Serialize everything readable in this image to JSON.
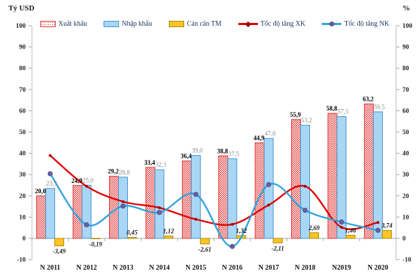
{
  "axis_titles": {
    "left": "Tỷ USD",
    "right": "%"
  },
  "legend": {
    "items": [
      {
        "label": "Xuất khẩu"
      },
      {
        "label": "Nhập khẩu"
      },
      {
        "label": "Cán cân TM"
      },
      {
        "label": "Tốc độ tăng XK"
      },
      {
        "label": "Tốc độ tăng NK"
      }
    ]
  },
  "chart_data": {
    "type": "combo-bar-line",
    "categories": [
      "N 2011",
      "N 2012",
      "N 2013",
      "N 2014",
      "N 2015",
      "N 2016",
      "N 2017",
      "N 2018",
      "N2019",
      "N 2020"
    ],
    "y_axis": {
      "min": -10,
      "max": 100,
      "step": 10,
      "unit_left": "Tỷ USD",
      "unit_right": "%"
    },
    "grid": "off",
    "legend_position": "top",
    "bar_series": [
      {
        "name": "Xuất khẩu",
        "values": [
          20.0,
          24.9,
          29.2,
          33.4,
          36.4,
          38.8,
          44.9,
          55.9,
          58.8,
          63.2
        ],
        "labels": [
          "20,0",
          "24,9",
          "29,2",
          "33,4",
          "36,4",
          "38,8",
          "44,9",
          "55,9",
          "58,8",
          "63,2"
        ],
        "style": "hatched-dots",
        "stroke": "#E03030"
      },
      {
        "name": "Nhập khẩu",
        "values": [
          23.5,
          25.0,
          28.8,
          32.3,
          39.0,
          37.5,
          47.0,
          53.2,
          57.3,
          59.5
        ],
        "labels": [
          "23,5",
          "25,0",
          "28,8",
          "32,3",
          "39,0",
          "37,5",
          "47,0",
          "53,2",
          "57,3",
          "59,5"
        ],
        "fill": "#A9D6F5",
        "stroke": "#4393CE"
      },
      {
        "name": "Cán cân TM",
        "values": [
          -3.49,
          -0.19,
          0.45,
          1.12,
          -2.61,
          1.32,
          -2.11,
          2.69,
          1.46,
          3.74
        ],
        "labels": [
          "-3,49",
          "-0,19",
          "0,45",
          "1,12",
          "-2,61",
          "1,32",
          "-2,11",
          "2,69",
          "1,46",
          "3,74"
        ],
        "fill": "#FFC425",
        "stroke": "#AD8800"
      }
    ],
    "line_series": [
      {
        "name": "Tốc độ tăng XK",
        "values": [
          39.0,
          24.5,
          17.3,
          14.4,
          9.0,
          6.6,
          15.7,
          24.5,
          5.2,
          7.5
        ],
        "color": "#E00000",
        "marker_color": "#A00000"
      },
      {
        "name": "Tốc độ tăng NK",
        "values": [
          30.4,
          6.4,
          15.2,
          12.2,
          20.7,
          -3.8,
          25.3,
          13.2,
          7.7,
          3.8
        ],
        "color": "#2FA3DC",
        "marker_color": "#6A5FA3"
      }
    ]
  }
}
